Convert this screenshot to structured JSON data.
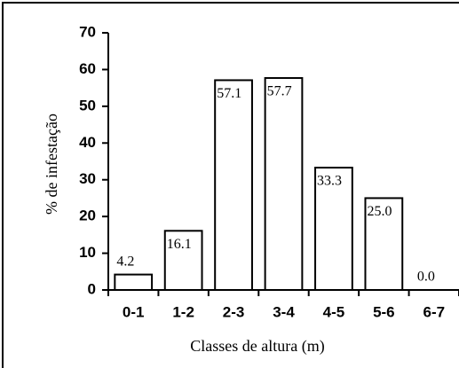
{
  "chart_data": {
    "type": "bar",
    "x_label": "Classes de altura (m)",
    "y_label": "% de infestação",
    "categories": [
      "0-1",
      "1-2",
      "2-3",
      "3-4",
      "4-5",
      "5-6",
      "6-7"
    ],
    "values": [
      4.2,
      16.1,
      57.1,
      57.7,
      33.3,
      25.0,
      0.0
    ],
    "value_labels": [
      "4.2",
      "16.1",
      "57.1",
      "57.7",
      "33.3",
      "25.0",
      "0.0"
    ],
    "color": "#ffffff",
    "ylim": [
      0,
      70
    ],
    "yticks": [
      0,
      10,
      20,
      30,
      40,
      50,
      60,
      70
    ],
    "grid": false
  }
}
